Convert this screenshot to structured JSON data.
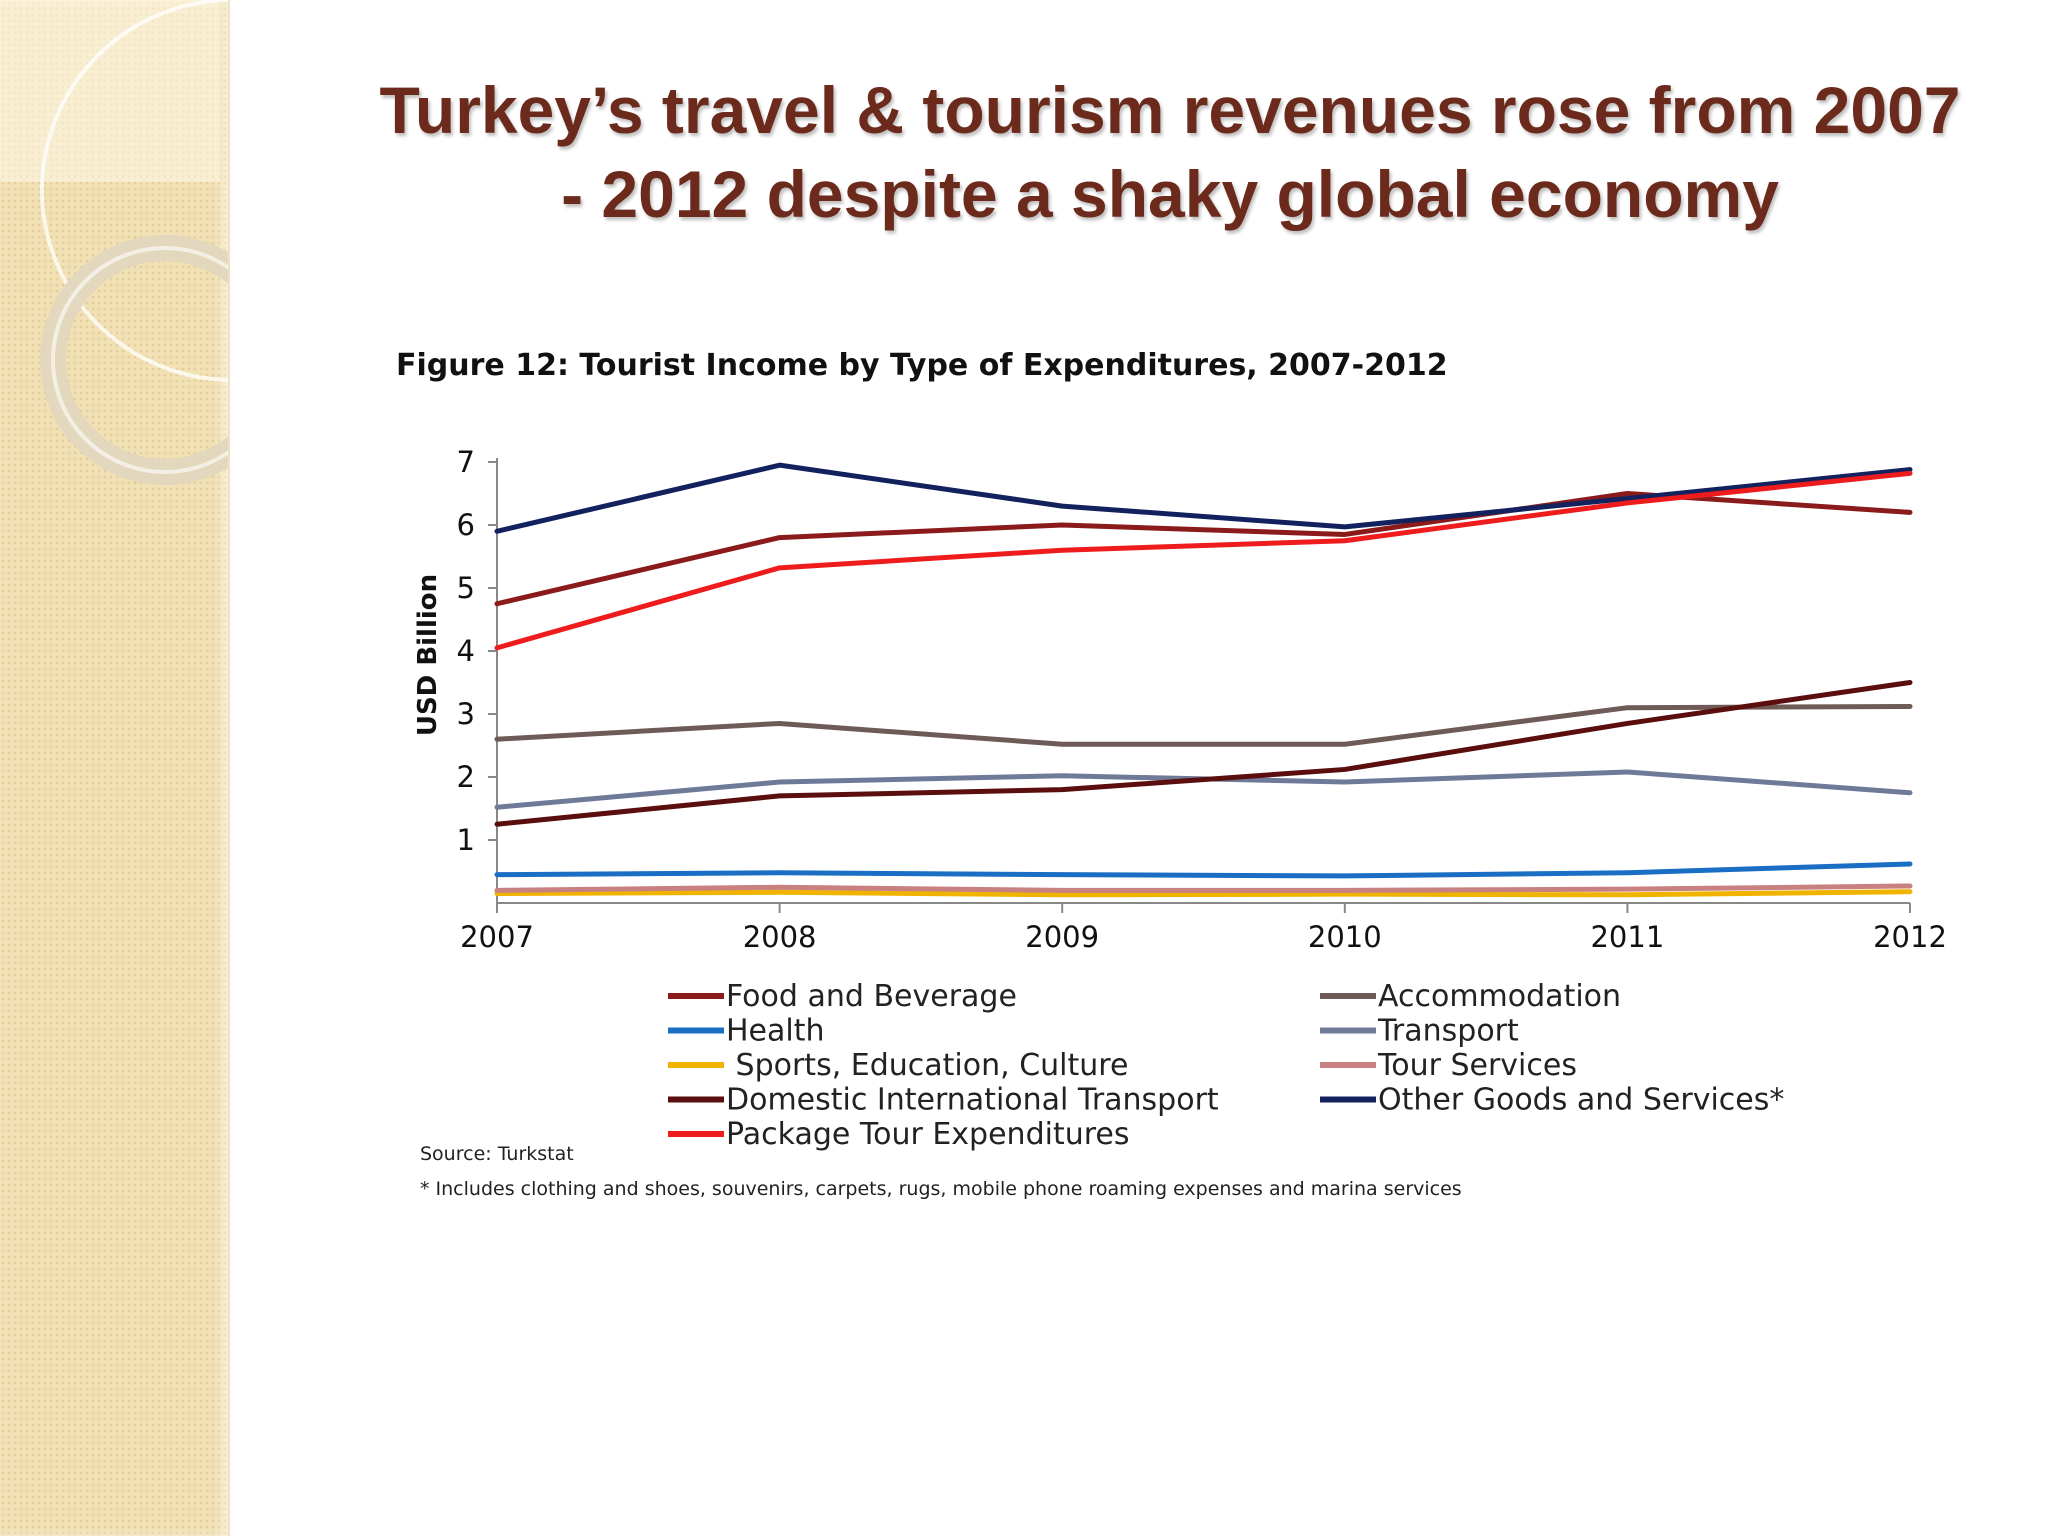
{
  "slide": {
    "title_line1": "Turkey’s travel & tourism revenues rose from 2007",
    "title_line2": "- 2012 despite a shaky global economy"
  },
  "colors": {
    "title": "#6b2a1b",
    "side_panel": "#f2e1b5"
  },
  "chart_data": {
    "type": "line",
    "title": "Figure 12: Tourist Income  by Type of Expenditures, 2007-2012",
    "xlabel": "",
    "ylabel": "USD Billion",
    "x": [
      "2007",
      "2008",
      "2009",
      "2010",
      "2011",
      "2012"
    ],
    "yticks": [
      1,
      2,
      3,
      4,
      5,
      6,
      7
    ],
    "ylim": [
      0,
      7
    ],
    "grid": false,
    "legend_position": "bottom",
    "series": [
      {
        "name": "Food and Beverage",
        "color": "#8b1a1a",
        "values": [
          4.75,
          5.8,
          6.0,
          5.85,
          6.5,
          6.2
        ]
      },
      {
        "name": "Accommodation",
        "color": "#6e5a57",
        "values": [
          2.6,
          2.85,
          2.52,
          2.52,
          3.1,
          3.12
        ]
      },
      {
        "name": "Health",
        "color": "#1a6fc4",
        "values": [
          0.45,
          0.48,
          0.45,
          0.43,
          0.48,
          0.62
        ]
      },
      {
        "name": "Transport",
        "color": "#6f7a99",
        "values": [
          1.52,
          1.92,
          2.02,
          1.92,
          2.08,
          1.75
        ]
      },
      {
        "name": " Sports, Education, Culture",
        "color": "#f0b400",
        "values": [
          0.15,
          0.17,
          0.13,
          0.14,
          0.13,
          0.18
        ]
      },
      {
        "name": "Tour Services",
        "color": "#c98080",
        "values": [
          0.2,
          0.25,
          0.2,
          0.2,
          0.22,
          0.27
        ]
      },
      {
        "name": "Domestic International Transport",
        "color": "#5a0e0e",
        "values": [
          1.25,
          1.7,
          1.8,
          2.12,
          2.85,
          3.5
        ]
      },
      {
        "name": "Other Goods and Services*",
        "color": "#13225f",
        "values": [
          5.9,
          6.95,
          6.3,
          5.97,
          6.42,
          6.88
        ]
      },
      {
        "name": "Package Tour Expenditures",
        "color": "#ee1c1c",
        "values": [
          4.05,
          5.32,
          5.6,
          5.75,
          6.35,
          6.82
        ]
      }
    ],
    "source": "Source: Turkstat",
    "footnote": "* Includes clothing and shoes, souvenirs, carpets, rugs, mobile phone roaming expenses and marina services"
  }
}
